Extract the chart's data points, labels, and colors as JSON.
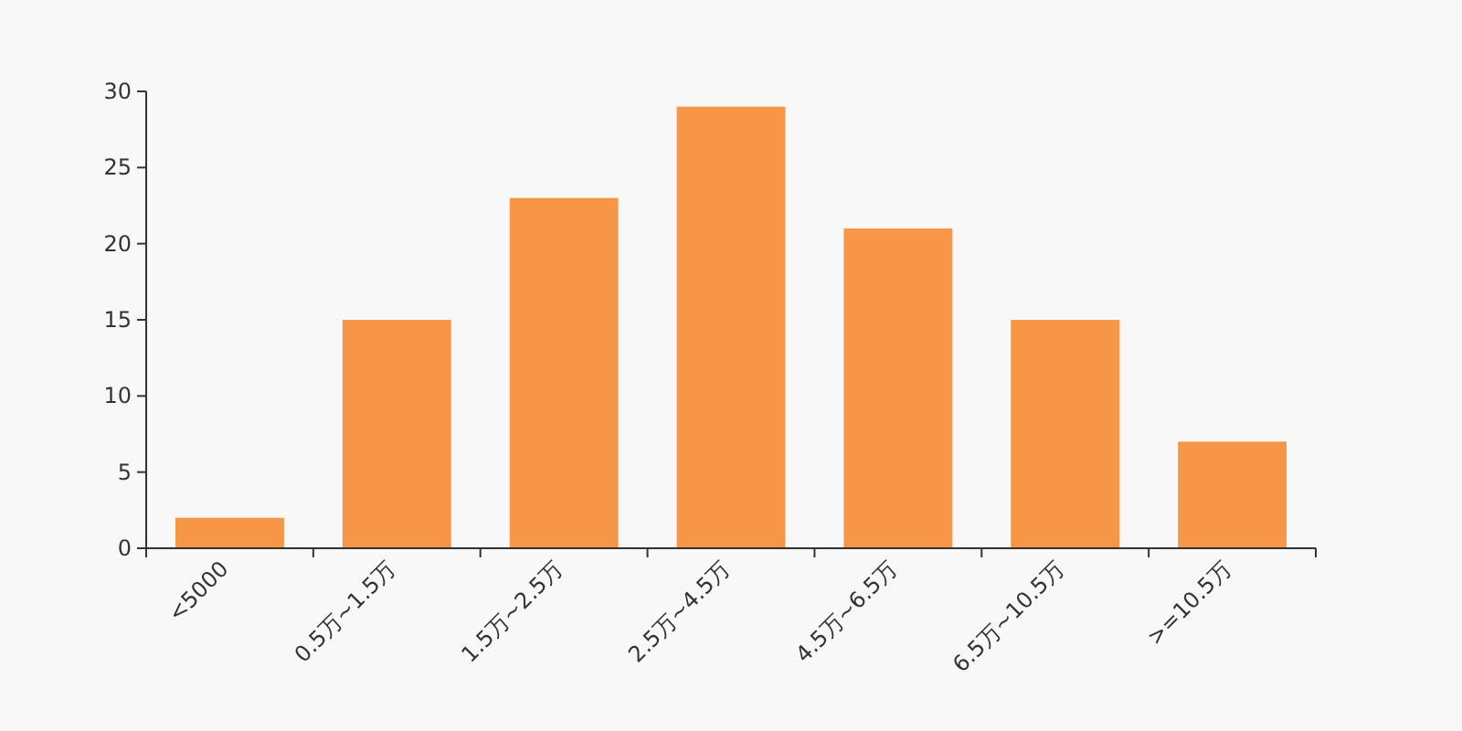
{
  "chart_data": {
    "type": "bar",
    "categories": [
      "<5000",
      "0.5万~1.5万",
      "1.5万~2.5万",
      "2.5万~4.5万",
      "4.5万~6.5万",
      "6.5万~10.5万",
      ">=10.5万"
    ],
    "values": [
      2,
      15,
      23,
      29,
      21,
      15,
      7
    ],
    "color": "#f79646",
    "ylim": [
      0,
      30
    ],
    "yticks": [
      0,
      5,
      10,
      15,
      20,
      25,
      30
    ]
  }
}
